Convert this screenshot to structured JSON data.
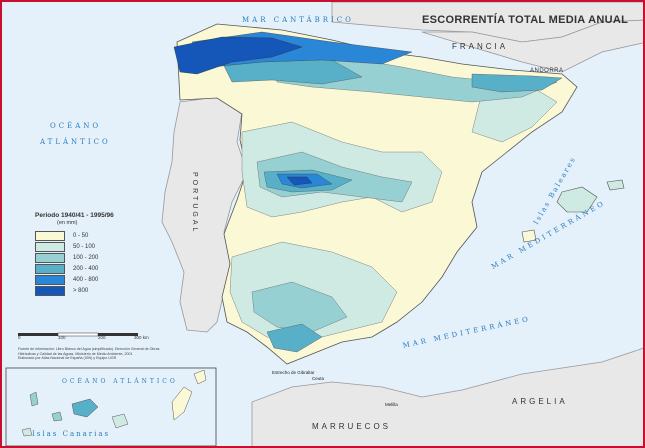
{
  "map": {
    "title": "ESCORRENTÍA TOTAL MEDIA ANUAL",
    "seas": {
      "cantabrico": "MAR CANTÁBRICO",
      "atlantico_line1": "OCÉANO",
      "atlantico_line2": "ATLÁNTICO",
      "mediterraneo_upper": "MAR MEDITERRÁNEO",
      "mediterraneo_lower": "MAR MEDITERRÁNEO",
      "inset_atlantico": "OCÉANO ATLÁNTICO"
    },
    "countries": {
      "francia": "FRANCIA",
      "andorra": "ANDORRA",
      "portugal": "PORTUGAL",
      "marruecos": "MARRUECOS",
      "argelia": "ARGELIA"
    },
    "islands": {
      "baleares": "Islas Baleares",
      "canarias": "Islas Canarias"
    },
    "places": {
      "estrecho": "Estrecho de Gibraltar",
      "ceuta": "Ceuta",
      "melilla": "Melilla"
    },
    "legend": {
      "heading": "Periodo 1940/41 - 1995/96",
      "unit": "(en mm)",
      "classes": [
        {
          "label": "0 - 50",
          "color": "#fbf8d6"
        },
        {
          "label": "50 - 100",
          "color": "#cfe9e3"
        },
        {
          "label": "100 - 200",
          "color": "#96d0d3"
        },
        {
          "label": "200 - 400",
          "color": "#57afc8"
        },
        {
          "label": "400 - 800",
          "color": "#2a86d6"
        },
        {
          "label": "> 800",
          "color": "#1457b8"
        }
      ]
    },
    "scale": {
      "ticks": [
        "0",
        "100",
        "200",
        "300 km"
      ]
    },
    "source": {
      "line1": "Fuente de información: Libro Blanco del Agua (simplificado). Dirección General de Obras",
      "line2": "Hidráulicas y Calidad de las Aguas. Ministerio de Medio Ambiente, 2001",
      "line3": "Elaborado por Atlas Nacional de España (IGN) y Equipo UGR"
    }
  }
}
